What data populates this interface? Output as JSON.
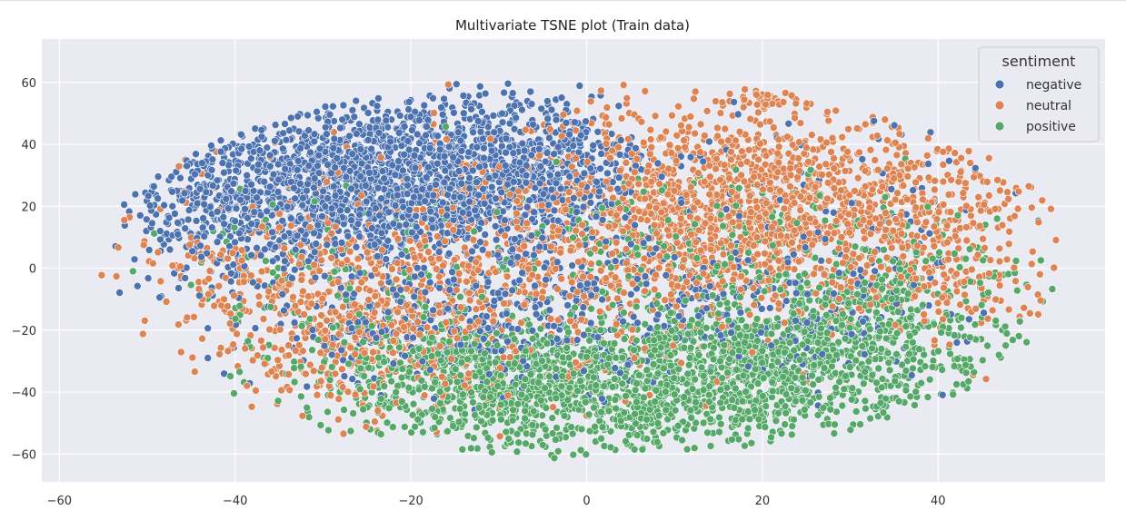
{
  "chart_data": {
    "type": "scatter",
    "title": "Multivariate TSNE plot (Train data)",
    "xlabel": "",
    "ylabel": "",
    "xlim": [
      -62,
      59
    ],
    "ylim": [
      -69,
      74
    ],
    "xticks": [
      -60,
      -40,
      -20,
      0,
      20,
      40
    ],
    "yticks": [
      -60,
      -40,
      -20,
      0,
      20,
      40,
      60
    ],
    "grid": true,
    "background": "#eaeaf2",
    "legend": {
      "title": "sentiment",
      "placement": "top-right",
      "entries": [
        "negative",
        "neutral",
        "positive"
      ]
    },
    "series": [
      {
        "name": "negative",
        "color": "#4c72b0",
        "clusters": [
          {
            "cx": -25,
            "cy": 28,
            "sx": 10,
            "sy": 13,
            "n": 1500
          },
          {
            "cx": -8,
            "cy": 30,
            "sx": 8,
            "sy": 14,
            "n": 700
          },
          {
            "cx": -42,
            "cy": 20,
            "sx": 5,
            "sy": 12,
            "n": 250
          },
          {
            "cx": -15,
            "cy": -15,
            "sx": 12,
            "sy": 12,
            "n": 400
          },
          {
            "cx": 15,
            "cy": -15,
            "sx": 12,
            "sy": 12,
            "n": 280
          },
          {
            "cx": 30,
            "cy": 20,
            "sx": 10,
            "sy": 15,
            "n": 80
          }
        ]
      },
      {
        "name": "neutral",
        "color": "#dd8452",
        "clusters": [
          {
            "cx": 20,
            "cy": 20,
            "sx": 12,
            "sy": 16,
            "n": 1300
          },
          {
            "cx": -5,
            "cy": 5,
            "sx": 15,
            "sy": 20,
            "n": 700
          },
          {
            "cx": -25,
            "cy": -20,
            "sx": 10,
            "sy": 15,
            "n": 500
          },
          {
            "cx": 40,
            "cy": 10,
            "sx": 7,
            "sy": 18,
            "n": 250
          },
          {
            "cx": -40,
            "cy": 0,
            "sx": 6,
            "sy": 15,
            "n": 120
          },
          {
            "cx": 20,
            "cy": 55,
            "sx": 3,
            "sy": 2,
            "n": 40
          }
        ]
      },
      {
        "name": "positive",
        "color": "#55a868",
        "clusters": [
          {
            "cx": 5,
            "cy": -38,
            "sx": 15,
            "sy": 10,
            "n": 1300
          },
          {
            "cx": 25,
            "cy": -25,
            "sx": 10,
            "sy": 12,
            "n": 600
          },
          {
            "cx": -15,
            "cy": -35,
            "sx": 10,
            "sy": 10,
            "n": 400
          },
          {
            "cx": 35,
            "cy": -10,
            "sx": 7,
            "sy": 15,
            "n": 200
          },
          {
            "cx": 10,
            "cy": 10,
            "sx": 12,
            "sy": 12,
            "n": 200
          },
          {
            "cx": -30,
            "cy": 0,
            "sx": 10,
            "sy": 15,
            "n": 100
          }
        ]
      }
    ]
  }
}
